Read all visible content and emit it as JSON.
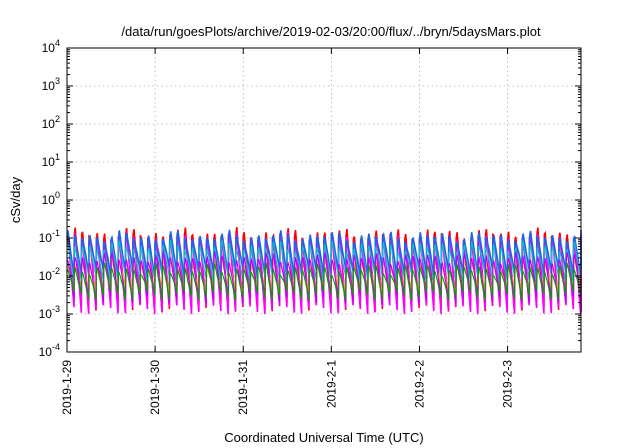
{
  "chart_data": {
    "type": "line",
    "title": "/data/run/goesPlots/archive/2019-02-03/20:00/flux/../bryn/5daysMars.plot",
    "xlabel": "Coordinated Universal Time (UTC)",
    "ylabel": "cSv/day",
    "yscale": "log",
    "ylim": [
      0.0001,
      10000
    ],
    "y_ticks": [
      {
        "value": 0.0001,
        "base": "10",
        "exp": "-4"
      },
      {
        "value": 0.001,
        "base": "10",
        "exp": "-3"
      },
      {
        "value": 0.01,
        "base": "10",
        "exp": "-2"
      },
      {
        "value": 0.1,
        "base": "10",
        "exp": "-1"
      },
      {
        "value": 1,
        "base": "10",
        "exp": "0"
      },
      {
        "value": 10,
        "base": "10",
        "exp": "1"
      },
      {
        "value": 100,
        "base": "10",
        "exp": "2"
      },
      {
        "value": 1000,
        "base": "10",
        "exp": "3"
      },
      {
        "value": 10000,
        "base": "10",
        "exp": "4"
      }
    ],
    "xlim": [
      "2019-01-29",
      "2019-02-03 20:00"
    ],
    "x_ticks": [
      "2019-1-29",
      "2019-1-30",
      "2019-1-31",
      "2019-2-1",
      "2019-2-2",
      "2019-2-3"
    ],
    "grid": true,
    "pattern": {
      "cycles_per_day": 12,
      "peak_range": [
        0.07,
        0.15
      ],
      "trough_range": [
        0.0012,
        0.004
      ]
    },
    "series": [
      {
        "color": "#ff0000",
        "peak": 0.13,
        "trough": 0.0015
      },
      {
        "color": "#ff00ff",
        "peak": 0.1,
        "trough": 0.0013
      },
      {
        "color": "#1e64e6",
        "peak": 0.11,
        "trough": 0.012
      },
      {
        "color": "#00c8c8",
        "peak": 0.06,
        "trough": 0.008
      },
      {
        "color": "#ffa000",
        "peak": 0.02,
        "trough": 0.004
      },
      {
        "color": "#b400ff",
        "peak": 0.03,
        "trough": 0.0025
      },
      {
        "color": "#00a000",
        "peak": 0.015,
        "trough": 0.003
      }
    ]
  }
}
